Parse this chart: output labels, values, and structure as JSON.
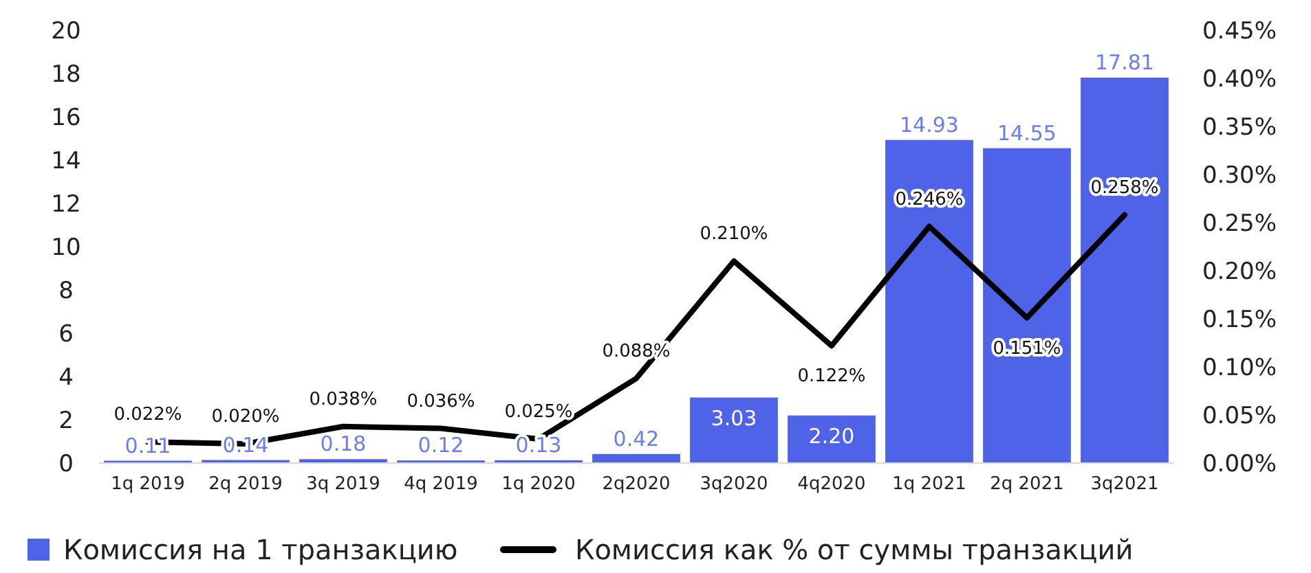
{
  "chart_data": {
    "type": "bar",
    "categories": [
      "1q 2019",
      "2q 2019",
      "3q 2019",
      "4q 2019",
      "1q 2020",
      "2q2020",
      "3q2020",
      "4q2020",
      "1q 2021",
      "2q 2021",
      "3q2021"
    ],
    "series": [
      {
        "name": "Комиссия на 1 транзакцию",
        "color": "#4f63e8",
        "values": [
          0.11,
          0.14,
          0.18,
          0.12,
          0.13,
          0.42,
          3.03,
          2.2,
          14.93,
          14.55,
          17.81
        ],
        "value_labels": [
          "0.11",
          "0.14",
          "0.18",
          "0.12",
          "0.13",
          "0.42",
          "3.03",
          "2.20",
          "14.93",
          "14.55",
          "17.81"
        ]
      },
      {
        "name": "Комиссия как % от суммы транзакций",
        "type": "line",
        "axis": "y2",
        "color": "#000000",
        "values": [
          0.022,
          0.02,
          0.038,
          0.036,
          0.025,
          0.088,
          0.21,
          0.122,
          0.246,
          0.151,
          0.258
        ],
        "value_labels": [
          "0.022%",
          "0.020%",
          "0.038%",
          "0.036%",
          "0.025%",
          "0.088%",
          "0.210%",
          "0.122%",
          "0.246%",
          "0.151%",
          "0.258%"
        ]
      }
    ],
    "ylim": [
      0,
      20
    ],
    "yticks": [
      0,
      2,
      4,
      6,
      8,
      10,
      12,
      14,
      16,
      18,
      20
    ],
    "y2lim": [
      0,
      0.45
    ],
    "y2ticks": [
      {
        "value": 0,
        "label": "0.00%"
      },
      {
        "value": 0.05,
        "label": "0.05%"
      },
      {
        "value": 0.1,
        "label": "0.10%"
      },
      {
        "value": 0.15,
        "label": "0.15%"
      },
      {
        "value": 0.2,
        "label": "0.20%"
      },
      {
        "value": 0.25,
        "label": "0.25%"
      },
      {
        "value": 0.3,
        "label": "0.30%"
      },
      {
        "value": 0.35,
        "label": "0.35%"
      },
      {
        "value": 0.4,
        "label": "0.40%"
      },
      {
        "value": 0.45,
        "label": "0.45%"
      }
    ],
    "legend": "bottom",
    "grid": false,
    "line_style": "solid",
    "marker": "none"
  }
}
